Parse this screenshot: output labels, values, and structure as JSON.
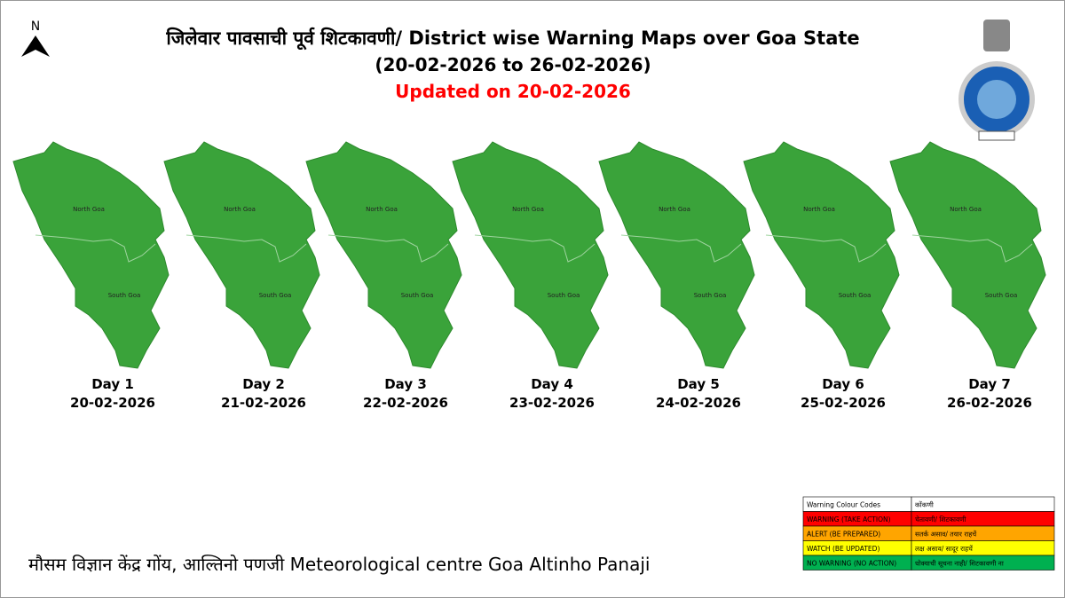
{
  "north_arrow": "N",
  "header": {
    "title": "जिलेवार पावसाची पूर्व शिटकावणी/ District wise Warning Maps over Goa State",
    "period": "(20-02-2026 to 26-02-2026)",
    "updated": "Updated on 20-02-2026"
  },
  "map_color": "#3aa33a",
  "maps": [
    {
      "day": "Day 1",
      "date": "20-02-2026",
      "districts": [
        "North Goa",
        "South Goa"
      ]
    },
    {
      "day": "Day 2",
      "date": "21-02-2026",
      "districts": [
        "North Goa",
        "South Goa"
      ]
    },
    {
      "day": "Day 3",
      "date": "22-02-2026",
      "districts": [
        "North Goa",
        "South Goa"
      ]
    },
    {
      "day": "Day 4",
      "date": "23-02-2026",
      "districts": [
        "North Goa",
        "South Goa"
      ]
    },
    {
      "day": "Day 5",
      "date": "24-02-2026",
      "districts": [
        "North Goa",
        "South Goa"
      ]
    },
    {
      "day": "Day 6",
      "date": "25-02-2026",
      "districts": [
        "North Goa",
        "South Goa"
      ]
    },
    {
      "day": "Day 7",
      "date": "26-02-2026",
      "districts": [
        "North Goa",
        "South Goa"
      ]
    }
  ],
  "legend": {
    "header": [
      "Warning Colour Codes",
      "कोंकणी"
    ],
    "rows": [
      {
        "color": "#ff0000",
        "cells": [
          "WARNING (TAKE ACTION)",
          "चेतावणी/ शिटकावणी"
        ]
      },
      {
        "color": "#ffa500",
        "cells": [
          "ALERT (BE PREPARED)",
          "सतर्क असाव/ तयार राहचें"
        ]
      },
      {
        "color": "#ffff00",
        "cells": [
          "WATCH (BE UPDATED)",
          "लक्ष असाव/ सादूर राहचें"
        ]
      },
      {
        "color": "#00b050",
        "cells": [
          "NO WARNING (NO ACTION)",
          "धोक्याची सूचना नाही/ शिटकावणी ना"
        ]
      }
    ]
  },
  "footer": "मौसम विज्ञान केंद्र गोंय, आल्तिनो पणजी  Meteorological centre Goa Altinho Panaji"
}
